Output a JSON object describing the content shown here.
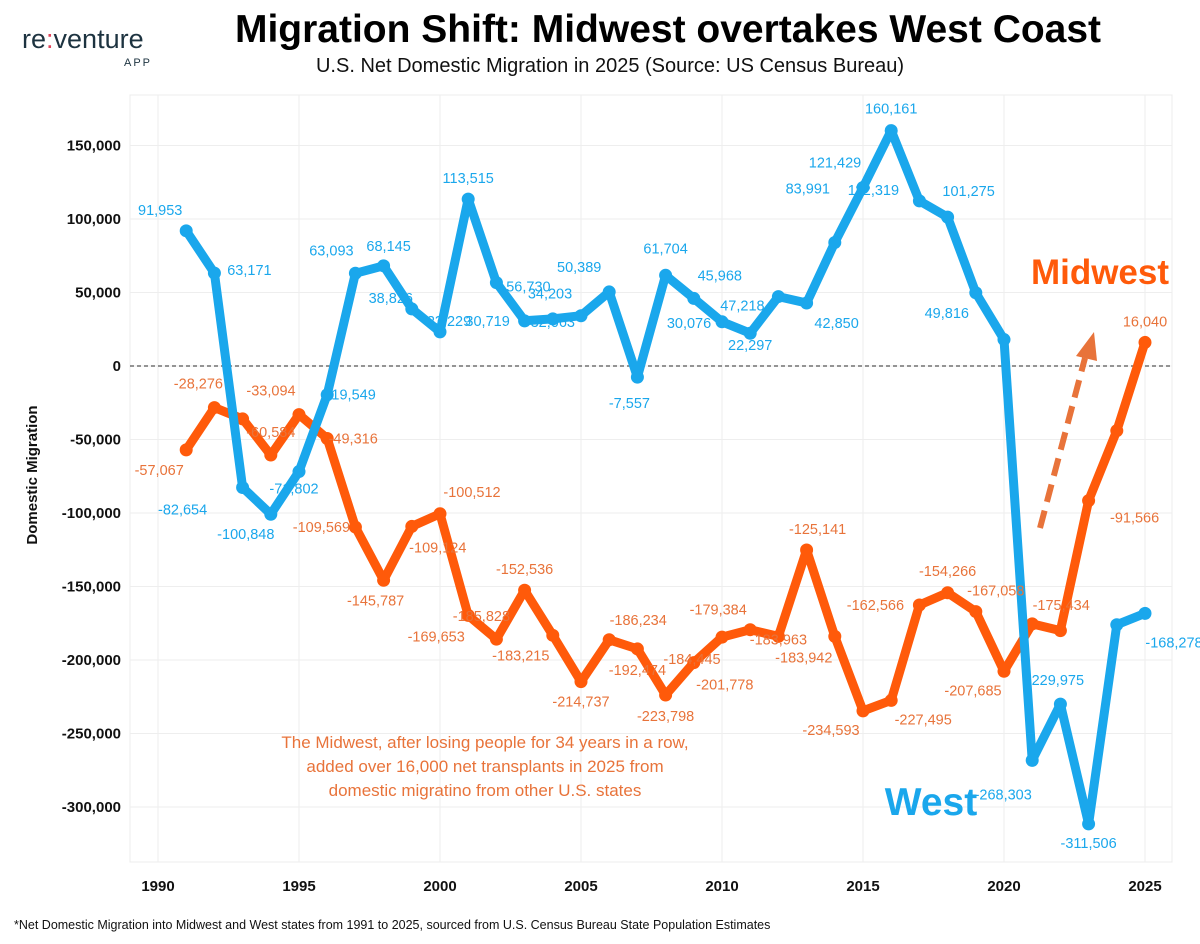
{
  "brand": {
    "logo_text": "re:venture",
    "logo_sub": "APP"
  },
  "title": "Migration Shift: Midwest overtakes West Coast",
  "subtitle": "U.S. Net Domestic Migration in 2025 (Source: US Census Bureau)",
  "footnote": "*Net Domestic Migration into Midwest and West states from 1991 to 2025, sourced from U.S. Census Bureau State Population Estimates",
  "chart_data": {
    "type": "line",
    "title": "Migration Shift: Midwest overtakes West Coast",
    "subtitle": "U.S. Net Domestic Migration in 2025 (Source: US Census Bureau)",
    "xlabel": "",
    "ylabel": "Domestic Migration",
    "xlim": [
      1990,
      2025
    ],
    "ylim": [
      -350000,
      175000
    ],
    "x_ticks": [
      "1990",
      "1995",
      "2000",
      "2005",
      "2010",
      "2015",
      "2020",
      "2025"
    ],
    "y_ticks": [
      "150,000",
      "100,000",
      "50,000",
      "0",
      "-50,000",
      "-100,000",
      "-150,000",
      "-200,000",
      "-250,000",
      "-300,000"
    ],
    "y_tick_values": [
      150000,
      100000,
      50000,
      0,
      -50000,
      -100000,
      -150000,
      -200000,
      -250000,
      -300000
    ],
    "grid": true,
    "zero_line": "dashed",
    "x": [
      1991,
      1992,
      1993,
      1994,
      1995,
      1996,
      1997,
      1998,
      1999,
      2000,
      2001,
      2002,
      2003,
      2004,
      2005,
      2006,
      2007,
      2008,
      2009,
      2010,
      2011,
      2012,
      2013,
      2014,
      2015,
      2016,
      2017,
      2018,
      2019,
      2020,
      2021,
      2022,
      2023,
      2024,
      2025
    ],
    "series": [
      {
        "name": "West",
        "color": "#1aa7ec",
        "label_color": "#1aa7ec",
        "values": [
          91953,
          63171,
          -82654,
          -100848,
          -71802,
          -19549,
          63093,
          68145,
          38826,
          23229,
          113515,
          56730,
          30719,
          32063,
          34203,
          50389,
          -7557,
          61704,
          45968,
          30076,
          22297,
          47218,
          42850,
          83991,
          121429,
          160161,
          112319,
          101275,
          49816,
          18000,
          -268303,
          -229975,
          -311506,
          -176000,
          -168278
        ],
        "labels": [
          "91,953",
          "63,171",
          "-82,654",
          "-100,848",
          "-71,802",
          "-19,549",
          "63,093",
          "68,145",
          "38,826",
          "23,229",
          "113,515",
          "56,730",
          "30,719",
          "32,063",
          "34,203",
          "50,389",
          "-7,557",
          "61,704",
          "45,968",
          "30,076",
          "22,297",
          "47,218",
          "42,850",
          "83,991",
          "121,429",
          "160,161",
          "112,319",
          "101,275",
          "49,816",
          "",
          "-268,303",
          "-229,975",
          "-311,506",
          "",
          "-168,278"
        ]
      },
      {
        "name": "Midwest",
        "color": "#ff5a0a",
        "label_color": "#e8733a",
        "values": [
          -57067,
          -28276,
          -36000,
          -60584,
          -33094,
          -49316,
          -109569,
          -145787,
          -109124,
          -100512,
          -169653,
          -185828,
          -152536,
          -183215,
          -214737,
          -186234,
          -192474,
          -223798,
          -201778,
          -184445,
          -179384,
          -183963,
          -125141,
          -183942,
          -234593,
          -227495,
          -162566,
          -154266,
          -167058,
          -207685,
          -175434,
          -180000,
          -91566,
          -44000,
          16040
        ],
        "labels": [
          "-57,067",
          "-28,276",
          "",
          "-60,584",
          "-33,094",
          "-49,316",
          "-109,569",
          "-145,787",
          "-109,124",
          "-100,512",
          "-169,653",
          "-185,828",
          "-152,536",
          "-183,215",
          "-214,737",
          "-186,234",
          "-192,474",
          "-223,798",
          "-201,778",
          "-184,445",
          "-179,384",
          "-183,963",
          "-125,141",
          "-183,942",
          "-234,593",
          "-227,495",
          "-162,566",
          "-154,266",
          "-167,058",
          "-207,685",
          "-175,434",
          "",
          "-91,566",
          "",
          "16,040"
        ]
      }
    ],
    "annotations": {
      "midwest_label": "Midwest",
      "west_label": "West",
      "note_lines": [
        "The Midwest, after losing people for 34 years in a row,",
        "added over 16,000 net transplants in 2025 from",
        "domestic migratino from other U.S. states"
      ],
      "trend_arrow": "dashed orange arrow pointing up toward 2025 Midwest value"
    }
  }
}
